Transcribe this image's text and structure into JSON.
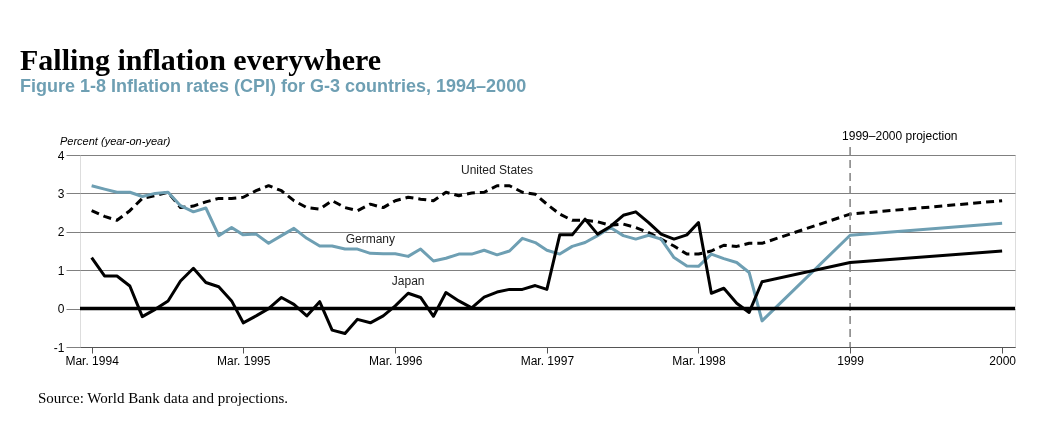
{
  "chart_data": {
    "type": "line",
    "title": "Falling inflation everywhere",
    "subtitle": "Figure 1-8 Inflation rates (CPI) for G-3 countries, 1994–2000",
    "ylabel": "Percent (year-on-year)",
    "x": [
      "1994-03",
      "1994-04",
      "1994-05",
      "1994-06",
      "1994-07",
      "1994-08",
      "1994-09",
      "1994-10",
      "1994-11",
      "1994-12",
      "1995-01",
      "1995-02",
      "1995-03",
      "1995-04",
      "1995-05",
      "1995-06",
      "1995-07",
      "1995-08",
      "1995-09",
      "1995-10",
      "1995-11",
      "1995-12",
      "1996-01",
      "1996-02",
      "1996-03",
      "1996-04",
      "1996-05",
      "1996-06",
      "1996-07",
      "1996-08",
      "1996-09",
      "1996-10",
      "1996-11",
      "1996-12",
      "1997-01",
      "1997-02",
      "1997-03",
      "1997-04",
      "1997-05",
      "1997-06",
      "1997-07",
      "1997-08",
      "1997-09",
      "1997-10",
      "1997-11",
      "1997-12",
      "1998-01",
      "1998-02",
      "1998-03",
      "1998-04",
      "1998-05",
      "1998-06",
      "1998-07",
      "1998-08",
      "1999-03",
      "2000-03"
    ],
    "series": [
      {
        "name": "United States",
        "color": "#000000",
        "line_style": "dashed",
        "values": [
          2.55,
          2.4,
          2.3,
          2.55,
          2.87,
          2.94,
          3.03,
          2.63,
          2.67,
          2.78,
          2.87,
          2.87,
          2.9,
          3.07,
          3.2,
          3.07,
          2.81,
          2.63,
          2.59,
          2.81,
          2.63,
          2.55,
          2.72,
          2.63,
          2.81,
          2.9,
          2.85,
          2.81,
          3.03,
          2.94,
          3.01,
          3.03,
          3.2,
          3.2,
          3.03,
          2.98,
          2.72,
          2.46,
          2.3,
          2.3,
          2.26,
          2.17,
          2.2,
          2.11,
          1.98,
          1.81,
          1.63,
          1.42,
          1.42,
          1.5,
          1.65,
          1.62,
          1.7,
          1.7,
          2.46,
          2.81
        ]
      },
      {
        "name": "Germany",
        "color": "#6e9fb3",
        "line_style": "solid",
        "values": [
          3.2,
          3.11,
          3.03,
          3.03,
          2.92,
          3.0,
          3.03,
          2.68,
          2.52,
          2.62,
          1.9,
          2.11,
          1.92,
          1.94,
          1.7,
          1.9,
          2.09,
          1.83,
          1.63,
          1.63,
          1.55,
          1.55,
          1.44,
          1.43,
          1.43,
          1.36,
          1.55,
          1.24,
          1.31,
          1.42,
          1.42,
          1.52,
          1.4,
          1.5,
          1.83,
          1.72,
          1.52,
          1.42,
          1.62,
          1.72,
          1.9,
          2.11,
          1.9,
          1.81,
          1.91,
          1.81,
          1.33,
          1.11,
          1.1,
          1.42,
          1.3,
          1.2,
          0.94,
          -0.32,
          1.91,
          2.22
        ]
      },
      {
        "name": "Japan",
        "color": "#000000",
        "line_style": "solid",
        "values": [
          1.33,
          0.85,
          0.85,
          0.59,
          -0.21,
          -0.02,
          0.2,
          0.72,
          1.05,
          0.68,
          0.57,
          0.2,
          -0.37,
          -0.19,
          0.0,
          0.29,
          0.11,
          -0.19,
          0.18,
          -0.56,
          -0.65,
          -0.28,
          -0.37,
          -0.19,
          0.07,
          0.4,
          0.29,
          -0.2,
          0.42,
          0.2,
          0.02,
          0.3,
          0.43,
          0.5,
          0.5,
          0.6,
          0.5,
          1.92,
          1.92,
          2.33,
          1.94,
          2.14,
          2.43,
          2.52,
          2.24,
          1.94,
          1.81,
          1.92,
          2.24,
          0.4,
          0.53,
          0.14,
          -0.1,
          0.7,
          1.2,
          1.5
        ]
      }
    ],
    "xlim": [
      "1994-02-01",
      "2000-04-01"
    ],
    "xticks": [
      {
        "value": "1994-03",
        "label": "Mar. 1994"
      },
      {
        "value": "1995-03",
        "label": "Mar. 1995"
      },
      {
        "value": "1996-03",
        "label": "Mar. 1996"
      },
      {
        "value": "1997-03",
        "label": "Mar. 1997"
      },
      {
        "value": "1998-03",
        "label": "Mar. 1998"
      },
      {
        "value": "1999-03",
        "label": "1999"
      },
      {
        "value": "2000-03",
        "label": "2000"
      }
    ],
    "ylim": [
      -1,
      4
    ],
    "yticks": [
      -1,
      0,
      1,
      2,
      3,
      4
    ],
    "grid": "y",
    "legend": false,
    "marker": "none",
    "ref_lines": [
      {
        "axis": "x",
        "value": "1999-03",
        "label": "1999–2000 projection",
        "color": "#808080",
        "line_style": "dashed"
      },
      {
        "axis": "y",
        "value": 0,
        "color": "#000000",
        "line_style": "solid"
      }
    ],
    "annotations": [
      "Source: World Bank data and projections."
    ]
  }
}
